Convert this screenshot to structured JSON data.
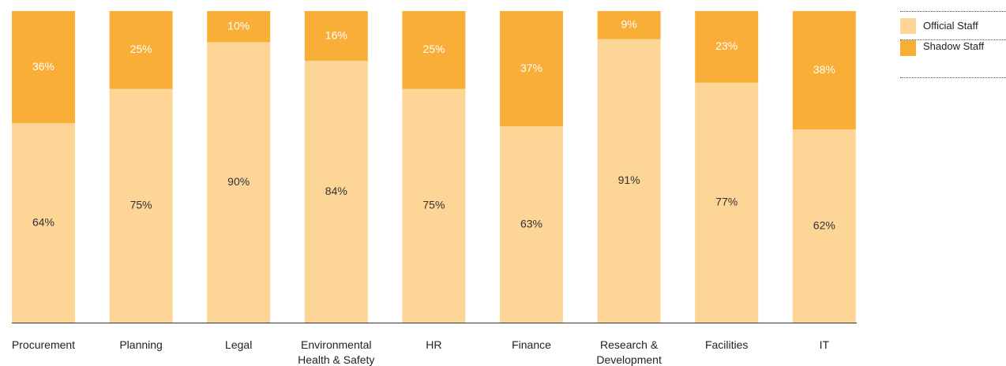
{
  "chart_data": {
    "type": "stacked_bar",
    "categories": [
      "Procurement",
      "Planning",
      "Legal",
      "Environmental Health & Safety",
      "HR",
      "Finance",
      "Research & Development",
      "Facilities",
      "IT"
    ],
    "series": [
      {
        "name": "Official Staff",
        "color": "#fcd597",
        "values": [
          64,
          75,
          90,
          84,
          75,
          63,
          91,
          77,
          62
        ],
        "value_labels": [
          "64%",
          "75%",
          "90%",
          "84%",
          "75%",
          "63%",
          "91%",
          "77%",
          "62%"
        ]
      },
      {
        "name": "Shadow Staff",
        "color": "#f9ae37",
        "values": [
          36,
          25,
          10,
          16,
          25,
          37,
          9,
          23,
          38
        ],
        "value_labels": [
          "36%",
          "25%",
          "10%",
          "16%",
          "25%",
          "37%",
          "9%",
          "23%",
          "38%"
        ]
      }
    ],
    "ylim": [
      0,
      100
    ]
  }
}
